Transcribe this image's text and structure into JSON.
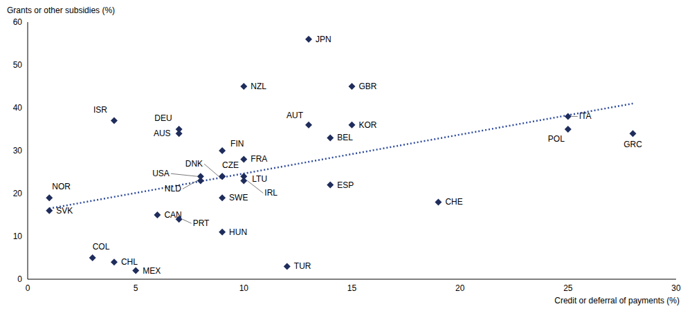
{
  "chart_data": {
    "type": "scatter",
    "x_label": "Credit or deferral of payments (%)",
    "y_label": "Grants or other subsidies (%)",
    "labels": [
      "JPN",
      "NZL",
      "GBR",
      "ISR",
      "DEU",
      "AUS",
      "AUT",
      "KOR",
      "BEL",
      "ITA",
      "POL",
      "GRC",
      "FIN",
      "FRA",
      "USA",
      "NLD",
      "DNK",
      "CZE",
      "LTU",
      "IRL",
      "SWE",
      "HUN",
      "ESP",
      "CHE",
      "NOR",
      "SVK",
      "CAN",
      "PRT",
      "COL",
      "CHL",
      "MEX",
      "TUR"
    ],
    "x": [
      13,
      10,
      15,
      4,
      7,
      7,
      13,
      15,
      14,
      25,
      25,
      28,
      9,
      10,
      8,
      8,
      9,
      9,
      10,
      10,
      9,
      9,
      14,
      19,
      1,
      1,
      6,
      7,
      3,
      4,
      5,
      12
    ],
    "values": [
      56,
      45,
      45,
      37,
      35,
      34,
      36,
      36,
      33,
      38,
      35,
      34,
      30,
      28,
      24,
      23,
      24,
      24,
      24,
      23,
      19,
      11,
      22,
      18,
      19,
      16,
      15,
      14,
      5,
      4,
      2,
      3
    ],
    "color": "#1f2d5c",
    "marker": "diamond",
    "trend": {
      "x": [
        1,
        28
      ],
      "values": [
        16.5,
        41
      ],
      "color": "#2f4c9c",
      "line_style": "dotted"
    },
    "xlim": [
      0,
      30
    ],
    "xticks": [
      0,
      5,
      10,
      15,
      20,
      25,
      30
    ],
    "ylim": [
      0,
      60
    ],
    "yticks": [
      0,
      10,
      20,
      30,
      40,
      50,
      60
    ],
    "grid": false
  }
}
